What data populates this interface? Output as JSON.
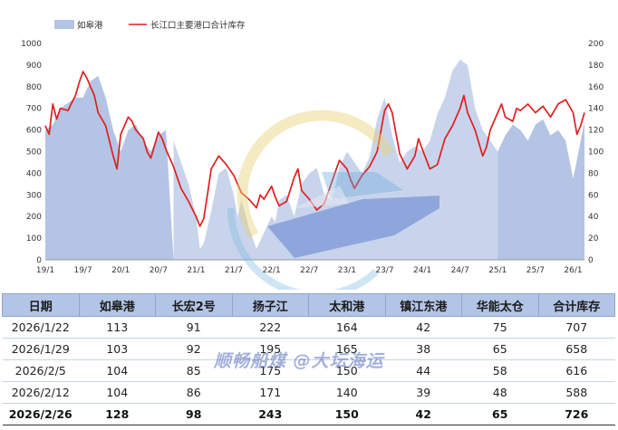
{
  "chart_data": {
    "type": "area+line",
    "legend": [
      "如皋港",
      "长江口主要港口合计库存"
    ],
    "legend_position": "top-left",
    "x_ticks": [
      "19/1",
      "19/7",
      "20/1",
      "20/7",
      "21/1",
      "21/7",
      "22/1",
      "22/7",
      "23/1",
      "23/7",
      "24/1",
      "24/7",
      "25/1",
      "25/7",
      "26/1"
    ],
    "y_left_ticks": [
      0,
      100,
      200,
      300,
      400,
      500,
      600,
      700,
      800,
      900,
      1000
    ],
    "y_right_ticks": [
      0,
      20,
      40,
      60,
      80,
      100,
      120,
      140,
      160,
      180,
      200
    ],
    "ylim_left": [
      0,
      1000
    ],
    "ylim_right": [
      0,
      200
    ],
    "grid": false,
    "series": [
      {
        "name": "如皋港",
        "axis": "right",
        "style": "area",
        "color": "#b4c4e4",
        "x": [
          2019.0,
          2019.1,
          2019.2,
          2019.3,
          2019.4,
          2019.5,
          2019.6,
          2019.7,
          2019.8,
          2019.9,
          2020.0,
          2020.1,
          2020.2,
          2020.3,
          2020.4,
          2020.5,
          2020.6,
          2020.7,
          2020.8,
          2020.9,
          2021.0,
          2021.1,
          2021.2,
          2021.3,
          2021.4,
          2021.5,
          2021.6,
          2021.7,
          2021.8,
          2021.9,
          2022.0,
          2022.1,
          2022.2,
          2022.3,
          2022.4,
          2022.5,
          2022.6,
          2022.7,
          2022.8,
          2022.9,
          2023.0,
          2023.1,
          2023.2,
          2023.3,
          2023.4,
          2023.5,
          2023.6,
          2023.7,
          2023.8,
          2023.9,
          2024.0,
          2024.1,
          2024.2,
          2024.3,
          2024.4,
          2024.5,
          2024.6,
          2024.7,
          2024.8,
          2024.9,
          2025.0,
          2025.1,
          2025.2,
          2025.3,
          2025.4,
          2025.5,
          2025.6,
          2025.7,
          2025.8,
          2025.9,
          2026.0,
          2026.15
        ],
        "values": [
          120,
          125,
          140,
          145,
          150,
          150,
          165,
          170,
          150,
          120,
          100,
          120,
          125,
          110,
          100,
          115,
          120,
          0,
          0,
          0,
          0,
          0,
          0,
          0,
          0,
          0,
          0,
          0,
          0,
          0,
          0,
          0,
          0,
          0,
          0,
          0,
          0,
          0,
          0,
          0,
          0,
          0,
          0,
          0,
          0,
          0,
          0,
          0,
          0,
          0,
          0,
          0,
          0,
          0,
          0,
          0,
          0,
          0,
          0,
          0,
          100,
          115,
          125,
          120,
          110,
          125,
          130,
          115,
          120,
          110,
          75,
          128
        ]
      },
      {
        "name": "如皋港",
        "axis": "right",
        "style": "area-light",
        "color": "#c8d4ec",
        "x": [
          2020.7,
          2020.8,
          2020.9,
          2021.0,
          2021.05,
          2021.1,
          2021.2,
          2021.3,
          2021.4,
          2021.5,
          2021.55,
          2021.6,
          2021.7,
          2021.8,
          2021.9,
          2022.0,
          2022.05,
          2022.1,
          2022.2,
          2022.3,
          2022.4,
          2022.5,
          2022.6,
          2022.7,
          2022.8,
          2022.9,
          2023.0,
          2023.1,
          2023.2,
          2023.3,
          2023.4,
          2023.5,
          2023.6,
          2023.7,
          2023.8,
          2023.9,
          2024.0,
          2024.1,
          2024.2,
          2024.3,
          2024.4,
          2024.5,
          2024.6,
          2024.7,
          2024.8,
          2024.9,
          2025.0
        ],
        "values": [
          110,
          90,
          70,
          40,
          10,
          15,
          45,
          80,
          85,
          60,
          40,
          55,
          30,
          10,
          25,
          40,
          35,
          55,
          60,
          40,
          70,
          80,
          85,
          60,
          55,
          85,
          100,
          90,
          80,
          95,
          130,
          150,
          115,
          90,
          100,
          105,
          100,
          110,
          135,
          150,
          175,
          185,
          180,
          140,
          120,
          110,
          100
        ]
      },
      {
        "name": "长江口主要港口合计库存",
        "axis": "left",
        "style": "line",
        "color": "#e01f1f",
        "x": [
          2019.0,
          2019.05,
          2019.1,
          2019.15,
          2019.2,
          2019.3,
          2019.4,
          2019.45,
          2019.5,
          2019.55,
          2019.6,
          2019.65,
          2019.7,
          2019.8,
          2019.9,
          2019.95,
          2020.0,
          2020.1,
          2020.15,
          2020.2,
          2020.3,
          2020.35,
          2020.4,
          2020.5,
          2020.55,
          2020.6,
          2020.7,
          2020.8,
          2020.9,
          2021.0,
          2021.05,
          2021.1,
          2021.15,
          2021.2,
          2021.3,
          2021.35,
          2021.4,
          2021.5,
          2021.55,
          2021.6,
          2021.7,
          2021.8,
          2021.85,
          2021.9,
          2022.0,
          2022.05,
          2022.1,
          2022.2,
          2022.3,
          2022.35,
          2022.4,
          2022.5,
          2022.6,
          2022.7,
          2022.8,
          2022.9,
          2023.0,
          2023.05,
          2023.1,
          2023.2,
          2023.3,
          2023.4,
          2023.5,
          2023.55,
          2023.6,
          2023.7,
          2023.8,
          2023.9,
          2023.95,
          2024.0,
          2024.1,
          2024.2,
          2024.3,
          2024.4,
          2024.5,
          2024.55,
          2024.6,
          2024.7,
          2024.8,
          2024.85,
          2024.9,
          2025.0,
          2025.05,
          2025.1,
          2025.2,
          2025.25,
          2025.3,
          2025.4,
          2025.5,
          2025.6,
          2025.7,
          2025.8,
          2025.9,
          2026.0,
          2026.05,
          2026.1,
          2026.15
        ],
        "values": [
          620,
          580,
          720,
          650,
          700,
          690,
          760,
          820,
          870,
          840,
          800,
          760,
          680,
          620,
          480,
          420,
          580,
          660,
          640,
          600,
          560,
          500,
          470,
          590,
          560,
          510,
          430,
          330,
          270,
          200,
          155,
          190,
          300,
          420,
          480,
          460,
          440,
          390,
          350,
          310,
          280,
          240,
          300,
          280,
          340,
          290,
          250,
          270,
          380,
          420,
          320,
          280,
          230,
          260,
          360,
          460,
          420,
          370,
          330,
          390,
          430,
          500,
          690,
          720,
          680,
          490,
          420,
          480,
          560,
          510,
          420,
          440,
          560,
          620,
          700,
          760,
          680,
          600,
          480,
          520,
          600,
          680,
          720,
          660,
          640,
          700,
          690,
          720,
          680,
          710,
          660,
          720,
          740,
          680,
          580,
          620,
          680
        ]
      }
    ]
  },
  "table": {
    "headers": [
      "日期",
      "如皋港",
      "长宏2号",
      "扬子江",
      "太和港",
      "镇江东港",
      "华能太仓",
      "合计库存"
    ],
    "rows": [
      [
        "2026/1/22",
        "113",
        "91",
        "222",
        "164",
        "42",
        "75",
        "707"
      ],
      [
        "2026/1/29",
        "103",
        "92",
        "195",
        "165",
        "38",
        "65",
        "658"
      ],
      [
        "2026/2/5",
        "104",
        "85",
        "175",
        "150",
        "44",
        "58",
        "616"
      ],
      [
        "2026/2/12",
        "104",
        "86",
        "171",
        "140",
        "39",
        "48",
        "588"
      ],
      [
        "2026/2/26",
        "128",
        "98",
        "243",
        "150",
        "42",
        "65",
        "726"
      ]
    ]
  },
  "watermark": "顺畅船煤 @大坛海运",
  "colors": {
    "area": "#b4c4e4",
    "area_light": "#c8d4ec",
    "line": "#e01f1f",
    "header_bg": "#b3c5e6"
  }
}
